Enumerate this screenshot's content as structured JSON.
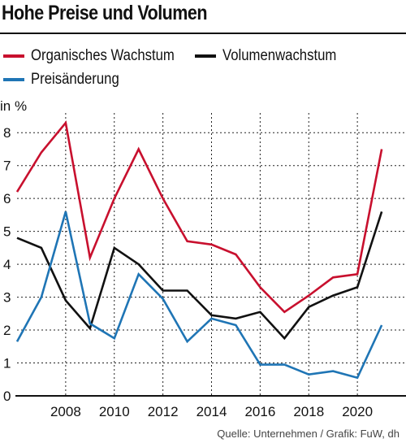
{
  "chart_data": {
    "type": "line",
    "title": "Hohe Preise und Volumen",
    "ylabel": "in %",
    "xlabel": "",
    "ylim": [
      0,
      8.5
    ],
    "xlim": [
      2006,
      2022
    ],
    "x_ticks": [
      2008,
      2010,
      2012,
      2014,
      2016,
      2018,
      2020
    ],
    "y_ticks": [
      0,
      1,
      2,
      3,
      4,
      5,
      6,
      7,
      8
    ],
    "grid": true,
    "legend_position": "top",
    "x": [
      2006,
      2007,
      2008,
      2009,
      2010,
      2011,
      2012,
      2013,
      2014,
      2015,
      2016,
      2017,
      2018,
      2019,
      2020,
      2021
    ],
    "series": [
      {
        "name": "Organisches Wachstum",
        "color": "#c8102e",
        "values": [
          6.2,
          7.4,
          8.3,
          4.2,
          6.0,
          7.5,
          6.0,
          4.7,
          4.6,
          4.3,
          3.3,
          2.55,
          3.05,
          3.6,
          3.7,
          7.5
        ]
      },
      {
        "name": "Volumenwachstum",
        "color": "#111111",
        "values": [
          4.8,
          4.5,
          2.9,
          2.05,
          4.5,
          4.0,
          3.2,
          3.2,
          2.45,
          2.35,
          2.55,
          1.75,
          2.7,
          3.05,
          3.3,
          5.6
        ]
      },
      {
        "name": "Preisänderung",
        "color": "#1f75b5",
        "values": [
          1.65,
          3.0,
          5.6,
          2.2,
          1.75,
          3.7,
          2.95,
          1.65,
          2.35,
          2.15,
          0.95,
          0.95,
          0.65,
          0.75,
          0.55,
          2.15
        ]
      }
    ],
    "source": "Quelle: Unternehmen / Grafik: FuW, dh"
  }
}
